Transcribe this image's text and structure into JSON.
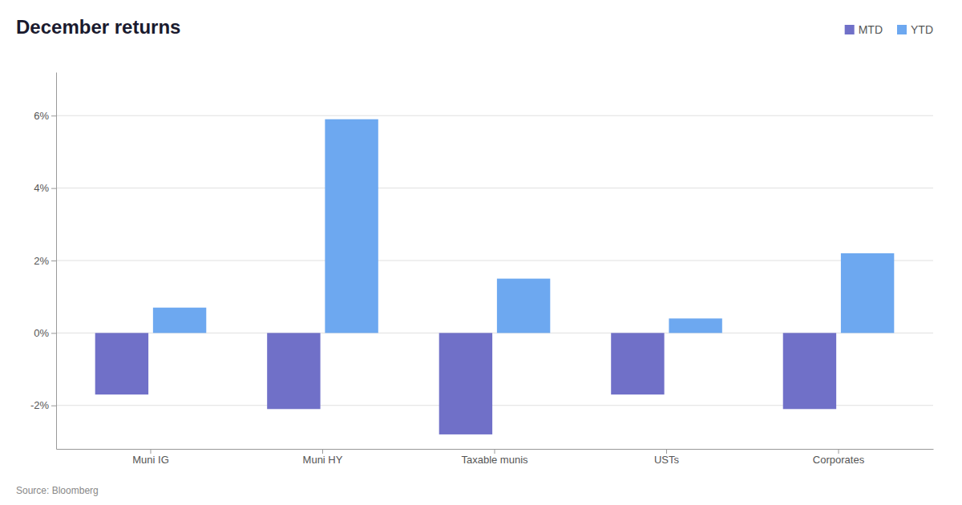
{
  "chart_data": {
    "type": "bar",
    "title": "December returns",
    "categories": [
      "Muni IG",
      "Muni HY",
      "Taxable munis",
      "USTs",
      "Corporates"
    ],
    "series": [
      {
        "name": "MTD",
        "color": "#7070c8",
        "values": [
          -1.7,
          -2.1,
          -2.8,
          -1.7,
          -2.1
        ]
      },
      {
        "name": "YTD",
        "color": "#6da8f0",
        "values": [
          0.7,
          5.9,
          1.5,
          0.4,
          2.2
        ]
      }
    ],
    "ylim": [
      -3.2,
      7.2
    ],
    "yticks": [
      {
        "value": -2,
        "label": "-2%"
      },
      {
        "value": 0,
        "label": "0%"
      },
      {
        "value": 2,
        "label": "2%"
      },
      {
        "value": 4,
        "label": "4%"
      },
      {
        "value": 6,
        "label": "6%"
      }
    ],
    "grid": true,
    "legend": "upper right",
    "source": "Source: Bloomberg"
  }
}
